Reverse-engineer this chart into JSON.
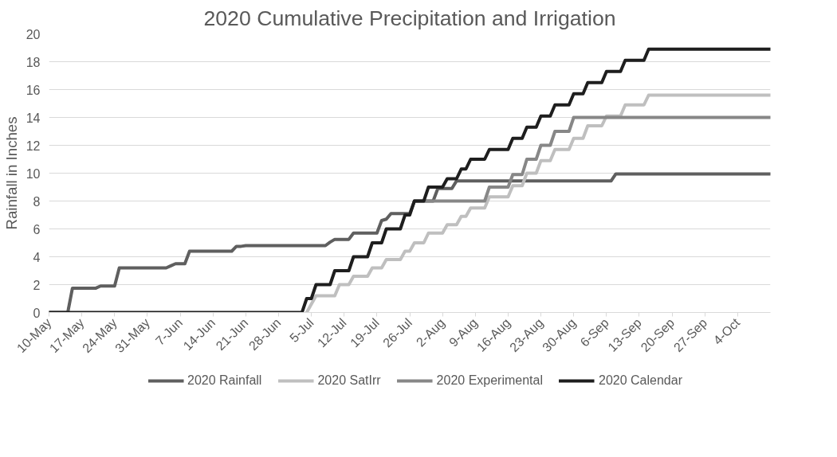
{
  "chart_data": {
    "type": "line",
    "title": "2020 Cumulative Precipitation and Irrigation",
    "ylabel": "Rainfall in Inches",
    "xlim": [
      "2020-05-10",
      "2020-10-11"
    ],
    "ylim": [
      0,
      20
    ],
    "yticks": [
      0,
      2,
      4,
      6,
      8,
      10,
      12,
      14,
      16,
      18,
      20
    ],
    "xticks": [
      {
        "value": "2020-05-10",
        "label": "10-May"
      },
      {
        "value": "2020-05-17",
        "label": "17-May"
      },
      {
        "value": "2020-05-24",
        "label": "24-May"
      },
      {
        "value": "2020-05-31",
        "label": "31-May"
      },
      {
        "value": "2020-06-07",
        "label": "7-Jun"
      },
      {
        "value": "2020-06-14",
        "label": "14-Jun"
      },
      {
        "value": "2020-06-21",
        "label": "21-Jun"
      },
      {
        "value": "2020-06-28",
        "label": "28-Jun"
      },
      {
        "value": "2020-07-05",
        "label": "5-Jul"
      },
      {
        "value": "2020-07-12",
        "label": "12-Jul"
      },
      {
        "value": "2020-07-19",
        "label": "19-Jul"
      },
      {
        "value": "2020-07-26",
        "label": "26-Jul"
      },
      {
        "value": "2020-08-02",
        "label": "2-Aug"
      },
      {
        "value": "2020-08-09",
        "label": "9-Aug"
      },
      {
        "value": "2020-08-16",
        "label": "16-Aug"
      },
      {
        "value": "2020-08-23",
        "label": "23-Aug"
      },
      {
        "value": "2020-08-30",
        "label": "30-Aug"
      },
      {
        "value": "2020-09-06",
        "label": "6-Sep"
      },
      {
        "value": "2020-09-13",
        "label": "13-Sep"
      },
      {
        "value": "2020-09-20",
        "label": "20-Sep"
      },
      {
        "value": "2020-09-27",
        "label": "27-Sep"
      },
      {
        "value": "2020-10-04",
        "label": "4-Oct"
      }
    ],
    "grid": "y",
    "legend": "bottom",
    "marker": "none",
    "line_style": "solid",
    "series": [
      {
        "name": "2020 Rainfall",
        "color": "#5f5f5f",
        "x": [
          "2020-05-10",
          "2020-05-14",
          "2020-05-15",
          "2020-05-20",
          "2020-05-21",
          "2020-05-24",
          "2020-05-25",
          "2020-06-04",
          "2020-06-05",
          "2020-06-06",
          "2020-06-08",
          "2020-06-09",
          "2020-06-18",
          "2020-06-19",
          "2020-06-20",
          "2020-06-21",
          "2020-07-08",
          "2020-07-09",
          "2020-07-10",
          "2020-07-13",
          "2020-07-14",
          "2020-07-19",
          "2020-07-20",
          "2020-07-21",
          "2020-07-22",
          "2020-07-26",
          "2020-07-27",
          "2020-07-31",
          "2020-08-01",
          "2020-08-04",
          "2020-08-05",
          "2020-09-07",
          "2020-09-08",
          "2020-10-11"
        ],
        "values": [
          0,
          0,
          1.75,
          1.75,
          1.9,
          1.9,
          3.2,
          3.2,
          3.35,
          3.5,
          3.5,
          4.4,
          4.4,
          4.75,
          4.75,
          4.8,
          4.8,
          5.05,
          5.25,
          5.25,
          5.7,
          5.7,
          6.6,
          6.7,
          7.1,
          7.1,
          8.0,
          8.0,
          8.9,
          8.9,
          9.45,
          9.45,
          9.95,
          9.95
        ]
      },
      {
        "name": "2020 SatIrr",
        "color": "#bfbfbf",
        "x": [
          "2020-07-04",
          "2020-07-05",
          "2020-07-06",
          "2020-07-10",
          "2020-07-11",
          "2020-07-13",
          "2020-07-14",
          "2020-07-17",
          "2020-07-18",
          "2020-07-20",
          "2020-07-21",
          "2020-07-24",
          "2020-07-25",
          "2020-07-26",
          "2020-07-27",
          "2020-07-29",
          "2020-07-30",
          "2020-08-02",
          "2020-08-03",
          "2020-08-05",
          "2020-08-06",
          "2020-08-07",
          "2020-08-08",
          "2020-08-11",
          "2020-08-12",
          "2020-08-16",
          "2020-08-17",
          "2020-08-19",
          "2020-08-20",
          "2020-08-22",
          "2020-08-23",
          "2020-08-25",
          "2020-08-26",
          "2020-08-29",
          "2020-08-30",
          "2020-09-01",
          "2020-09-02",
          "2020-09-05",
          "2020-09-06",
          "2020-09-09",
          "2020-09-10",
          "2020-09-14",
          "2020-09-15",
          "2020-10-11"
        ],
        "values": [
          0,
          0.6,
          1.2,
          1.2,
          2.0,
          2.0,
          2.6,
          2.6,
          3.2,
          3.2,
          3.8,
          3.8,
          4.4,
          4.4,
          5.0,
          5.0,
          5.7,
          5.7,
          6.3,
          6.3,
          6.9,
          6.9,
          7.5,
          7.5,
          8.3,
          8.3,
          9.1,
          9.1,
          10.0,
          10.0,
          10.9,
          10.9,
          11.7,
          11.7,
          12.5,
          12.5,
          13.4,
          13.4,
          14.1,
          14.1,
          14.9,
          14.9,
          15.6,
          15.6
        ]
      },
      {
        "name": "2020 Experimental",
        "color": "#878787",
        "x": [
          "2020-07-27",
          "2020-08-11",
          "2020-08-12",
          "2020-08-16",
          "2020-08-17",
          "2020-08-19",
          "2020-08-20",
          "2020-08-22",
          "2020-08-23",
          "2020-08-25",
          "2020-08-26",
          "2020-08-29",
          "2020-08-30",
          "2020-10-11"
        ],
        "values": [
          8.0,
          8.0,
          9.0,
          9.0,
          9.9,
          9.9,
          11.0,
          11.0,
          12.0,
          12.0,
          13.0,
          13.0,
          14.0,
          14.0
        ]
      },
      {
        "name": "2020 Calendar",
        "color": "#1e1e1e",
        "x": [
          "2020-05-10",
          "2020-07-03",
          "2020-07-04",
          "2020-07-05",
          "2020-07-06",
          "2020-07-09",
          "2020-07-10",
          "2020-07-13",
          "2020-07-14",
          "2020-07-17",
          "2020-07-18",
          "2020-07-20",
          "2020-07-21",
          "2020-07-24",
          "2020-07-25",
          "2020-07-26",
          "2020-07-27",
          "2020-07-29",
          "2020-07-30",
          "2020-08-02",
          "2020-08-03",
          "2020-08-05",
          "2020-08-06",
          "2020-08-07",
          "2020-08-08",
          "2020-08-11",
          "2020-08-12",
          "2020-08-16",
          "2020-08-17",
          "2020-08-19",
          "2020-08-20",
          "2020-08-22",
          "2020-08-23",
          "2020-08-25",
          "2020-08-26",
          "2020-08-29",
          "2020-08-30",
          "2020-09-01",
          "2020-09-02",
          "2020-09-05",
          "2020-09-06",
          "2020-09-09",
          "2020-09-10",
          "2020-09-14",
          "2020-09-15",
          "2020-10-11"
        ],
        "values": [
          0,
          0,
          1.0,
          1.0,
          2.0,
          2.0,
          3.0,
          3.0,
          4.0,
          4.0,
          5.0,
          5.0,
          6.0,
          6.0,
          7.0,
          7.0,
          8.0,
          8.0,
          9.0,
          9.0,
          9.6,
          9.6,
          10.3,
          10.3,
          11.0,
          11.0,
          11.7,
          11.7,
          12.5,
          12.5,
          13.3,
          13.3,
          14.1,
          14.1,
          14.9,
          14.9,
          15.7,
          15.7,
          16.5,
          16.5,
          17.3,
          17.3,
          18.1,
          18.1,
          18.9,
          18.9
        ]
      }
    ]
  }
}
